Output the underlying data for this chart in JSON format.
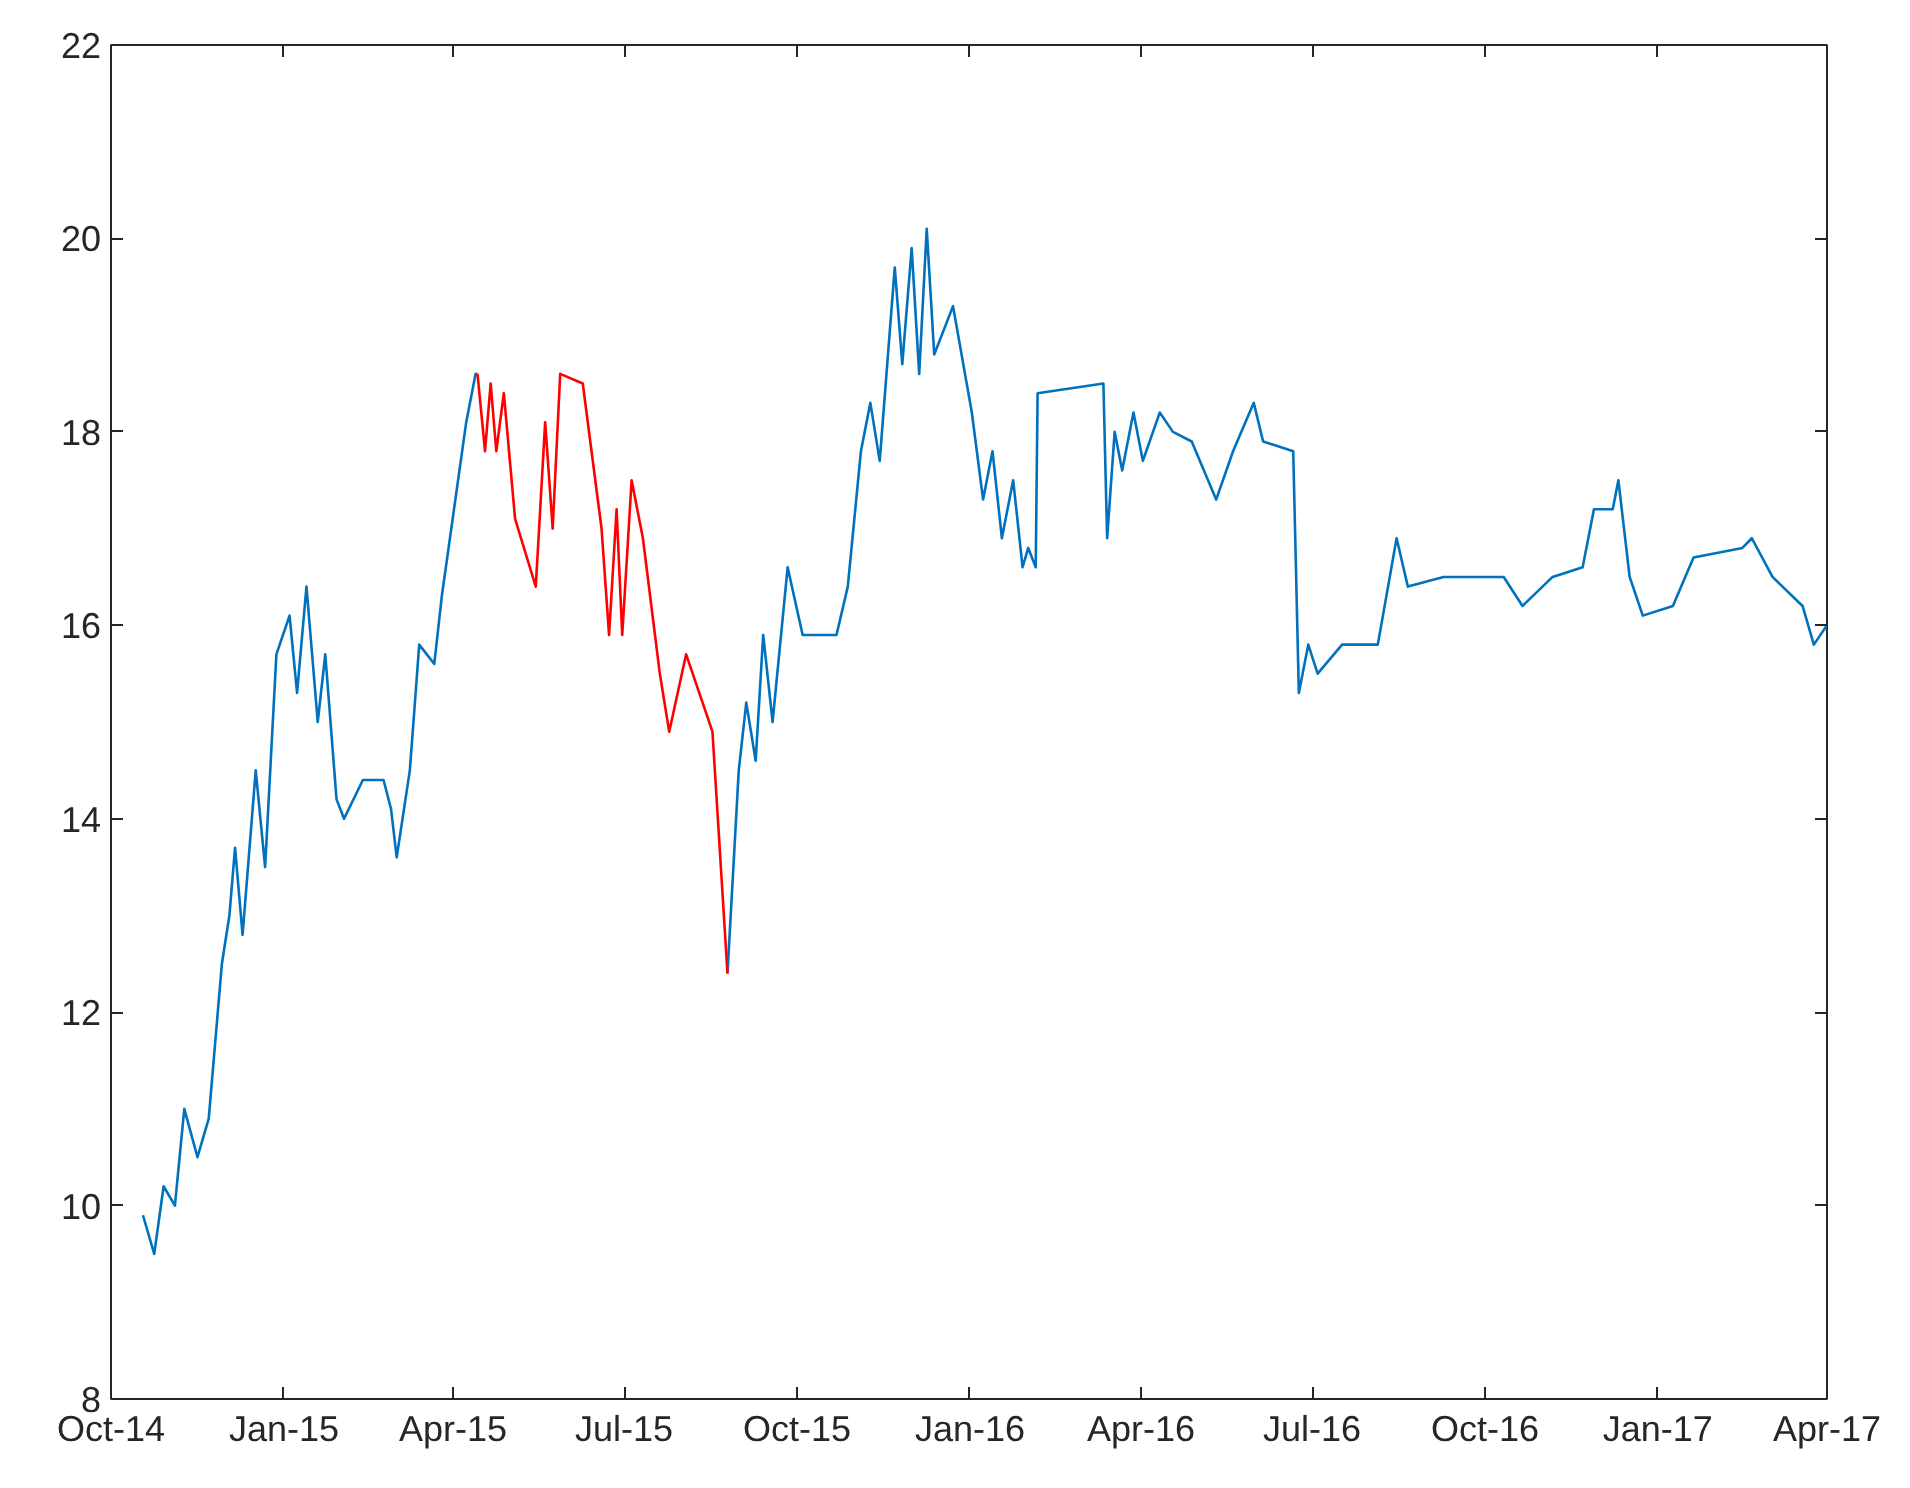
{
  "chart_data": {
    "type": "line",
    "xlim": [
      "2014-10-01",
      "2017-04-01"
    ],
    "xticks": [
      {
        "value": "2014-10-01",
        "label": "Oct-14"
      },
      {
        "value": "2015-01-01",
        "label": "Jan-15"
      },
      {
        "value": "2015-04-01",
        "label": "Apr-15"
      },
      {
        "value": "2015-07-01",
        "label": "Jul-15"
      },
      {
        "value": "2015-10-01",
        "label": "Oct-15"
      },
      {
        "value": "2016-01-01",
        "label": "Jan-16"
      },
      {
        "value": "2016-04-01",
        "label": "Apr-16"
      },
      {
        "value": "2016-07-01",
        "label": "Jul-16"
      },
      {
        "value": "2016-10-01",
        "label": "Oct-16"
      },
      {
        "value": "2017-01-01",
        "label": "Jan-17"
      },
      {
        "value": "2017-04-01",
        "label": "Apr-17"
      }
    ],
    "ylim": [
      8,
      22
    ],
    "yticks": [
      8,
      10,
      12,
      14,
      16,
      18,
      20,
      22
    ],
    "grid": false,
    "line_style": "solid",
    "marker": "none",
    "series": [
      {
        "color": "#0072bd",
        "x": [
          "2014-10-18",
          "2014-10-24",
          "2014-10-29",
          "2014-11-04",
          "2014-11-09",
          "2014-11-16",
          "2014-11-22",
          "2014-11-29",
          "2014-12-03",
          "2014-12-06",
          "2014-12-10",
          "2014-12-17",
          "2014-12-22",
          "2014-12-28",
          "2015-01-04",
          "2015-01-08",
          "2015-01-13",
          "2015-01-19",
          "2015-01-23",
          "2015-01-29",
          "2015-02-02",
          "2015-02-12",
          "2015-02-23",
          "2015-02-27",
          "2015-03-02",
          "2015-03-09",
          "2015-03-14",
          "2015-03-22",
          "2015-03-26",
          "2015-04-08",
          "2015-04-13",
          "2015-04-14",
          "2015-06-01",
          "2015-08-25",
          "2015-08-31",
          "2015-09-04",
          "2015-09-09",
          "2015-09-13",
          "2015-09-18",
          "2015-09-26",
          "2015-10-04",
          "2015-10-22",
          "2015-10-28",
          "2015-11-04",
          "2015-11-09",
          "2015-11-14",
          "2015-11-22",
          "2015-11-26",
          "2015-12-01",
          "2015-12-05",
          "2015-12-09",
          "2015-12-13",
          "2015-12-23",
          "2016-01-02",
          "2016-01-08",
          "2016-01-13",
          "2016-01-18",
          "2016-01-24",
          "2016-01-29",
          "2016-02-01",
          "2016-02-05",
          "2016-02-06",
          "2016-03-12",
          "2016-03-14",
          "2016-03-18",
          "2016-03-22",
          "2016-03-28",
          "2016-04-02",
          "2016-04-11",
          "2016-04-18",
          "2016-04-28",
          "2016-05-11",
          "2016-05-20",
          "2016-05-31",
          "2016-06-05",
          "2016-06-21",
          "2016-06-24",
          "2016-06-29",
          "2016-07-04",
          "2016-07-17",
          "2016-08-05",
          "2016-08-15",
          "2016-08-21",
          "2016-09-09",
          "2016-10-11",
          "2016-10-21",
          "2016-11-06",
          "2016-11-22",
          "2016-11-28",
          "2016-12-08",
          "2016-12-11",
          "2016-12-17",
          "2016-12-24",
          "2017-01-09",
          "2017-01-20",
          "2017-02-15",
          "2017-02-20",
          "2017-03-03",
          "2017-03-19",
          "2017-03-25",
          "2017-04-01"
        ],
        "values": [
          9.9,
          9.5,
          10.2,
          10.0,
          11.0,
          10.5,
          10.9,
          12.5,
          13.0,
          13.7,
          12.8,
          14.5,
          13.5,
          15.7,
          16.1,
          15.3,
          16.4,
          15.0,
          15.7,
          14.2,
          14.0,
          14.4,
          14.4,
          14.1,
          13.6,
          14.5,
          15.8,
          15.6,
          16.3,
          18.1,
          18.6,
          18.6,
          null,
          12.4,
          14.5,
          15.2,
          14.6,
          15.9,
          15.0,
          16.6,
          15.9,
          15.9,
          16.4,
          17.8,
          18.3,
          17.7,
          19.7,
          18.7,
          19.9,
          18.6,
          20.1,
          18.8,
          19.3,
          18.2,
          17.3,
          17.8,
          16.9,
          17.5,
          16.6,
          16.8,
          16.6,
          18.4,
          18.5,
          16.9,
          18.0,
          17.6,
          18.2,
          17.7,
          18.2,
          18.0,
          17.9,
          17.3,
          17.8,
          18.3,
          17.9,
          17.8,
          15.3,
          15.8,
          15.5,
          15.8,
          15.8,
          16.9,
          16.4,
          16.5,
          16.5,
          16.2,
          16.5,
          16.6,
          17.2,
          17.2,
          17.5,
          16.5,
          16.1,
          16.2,
          16.7,
          16.8,
          16.9,
          16.5,
          16.2,
          15.8,
          16.0
        ]
      },
      {
        "color": "#ff0000",
        "x": [
          "2015-04-14",
          "2015-04-18",
          "2015-04-21",
          "2015-04-24",
          "2015-04-28",
          "2015-05-04",
          "2015-05-15",
          "2015-05-20",
          "2015-05-24",
          "2015-05-28",
          "2015-06-09",
          "2015-06-19",
          "2015-06-23",
          "2015-06-27",
          "2015-06-30",
          "2015-07-05",
          "2015-07-11",
          "2015-07-20",
          "2015-07-25",
          "2015-08-03",
          "2015-08-17",
          "2015-08-25"
        ],
        "values": [
          18.6,
          17.8,
          18.5,
          17.8,
          18.4,
          17.1,
          16.4,
          18.1,
          17.0,
          18.6,
          18.5,
          17.0,
          15.9,
          17.2,
          15.9,
          17.5,
          16.9,
          15.5,
          14.9,
          15.7,
          14.9,
          12.4
        ]
      }
    ]
  }
}
